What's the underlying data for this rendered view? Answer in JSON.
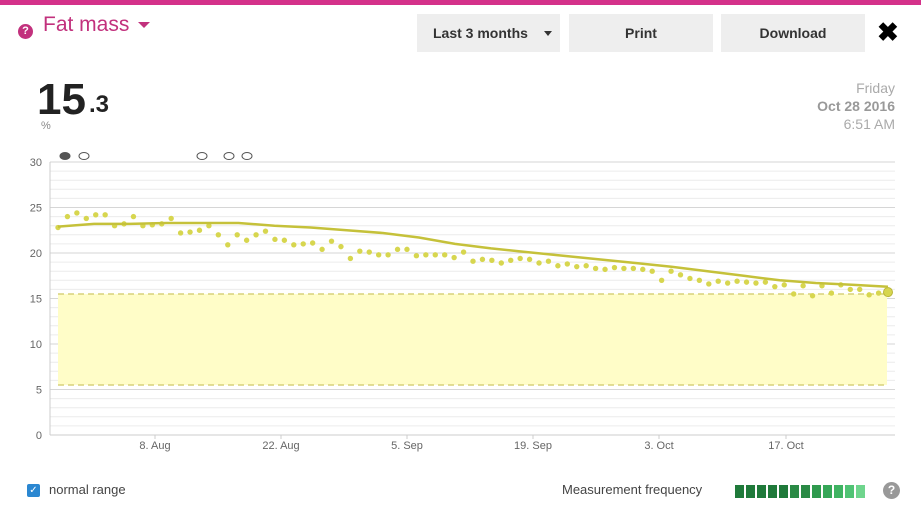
{
  "header": {
    "metric_title": "Fat mass",
    "range_label": "Last 3 months",
    "print_label": "Print",
    "download_label": "Download",
    "help_glyph": "?",
    "close_glyph": "✖"
  },
  "summary": {
    "value_int": "15",
    "value_dec": ".3",
    "unit": "%",
    "weekday": "Friday",
    "date": "Oct 28 2016",
    "time": "6:51 AM"
  },
  "footer": {
    "normal_range_label": "normal range",
    "normal_range_checked": true,
    "measurement_frequency_label": "Measurement frequency",
    "frequency_colors": [
      "#1f7a3a",
      "#1f7a3a",
      "#1f7a3a",
      "#1f7a3a",
      "#1f7a3a",
      "#2a8a45",
      "#2a8a45",
      "#2f9a4e",
      "#36a758",
      "#3fb362",
      "#50c374",
      "#6fd58d"
    ],
    "help_glyph": "?"
  },
  "colors": {
    "accent": "#c2317d",
    "trend_line": "#c5c13a",
    "points": "#d7d64f",
    "normal_band": "#fffdc8"
  },
  "chart_data": {
    "type": "line",
    "ylim": [
      0,
      30
    ],
    "yticks": [
      0,
      5,
      10,
      15,
      20,
      25,
      30
    ],
    "x_start_label_day": 0,
    "x_tick_labels": [
      "8. Aug",
      "22. Aug",
      "5. Sep",
      "19. Sep",
      "3. Oct",
      "17. Oct"
    ],
    "normal_range": [
      5.5,
      15.5
    ],
    "trend_values": [
      22.9,
      23.2,
      23.2,
      23.3,
      23.3,
      23.3,
      23.0,
      22.8,
      22.5,
      22.2,
      21.7,
      21.0,
      20.5,
      20.1,
      19.7,
      19.3,
      18.9,
      18.5,
      18.0,
      17.5,
      17.0,
      16.7,
      16.5,
      16.3
    ],
    "measurements": [
      22.8,
      24.0,
      24.4,
      23.8,
      24.2,
      24.2,
      23.0,
      23.2,
      24.0,
      23.0,
      23.1,
      23.2,
      23.8,
      22.2,
      22.3,
      22.5,
      23.0,
      22.0,
      20.9,
      22.0,
      21.4,
      22.0,
      22.4,
      21.5,
      21.4,
      20.9,
      21.0,
      21.1,
      20.4,
      21.3,
      20.7,
      19.4,
      20.2,
      20.1,
      19.8,
      19.8,
      20.4,
      20.4,
      19.7,
      19.8,
      19.8,
      19.8,
      19.5,
      20.1,
      19.1,
      19.3,
      19.2,
      18.9,
      19.2,
      19.4,
      19.3,
      18.9,
      19.1,
      18.6,
      18.8,
      18.5,
      18.6,
      18.3,
      18.2,
      18.4,
      18.3,
      18.3,
      18.2,
      18.0,
      17.0,
      18.0,
      17.6,
      17.2,
      17.0,
      16.6,
      16.9,
      16.7,
      16.9,
      16.8,
      16.7,
      16.8,
      16.3,
      16.5,
      15.5,
      16.4,
      15.3,
      16.4,
      15.6,
      16.5,
      16.0,
      16.0,
      15.4,
      15.6,
      15.7
    ],
    "comment_markers": 5
  }
}
